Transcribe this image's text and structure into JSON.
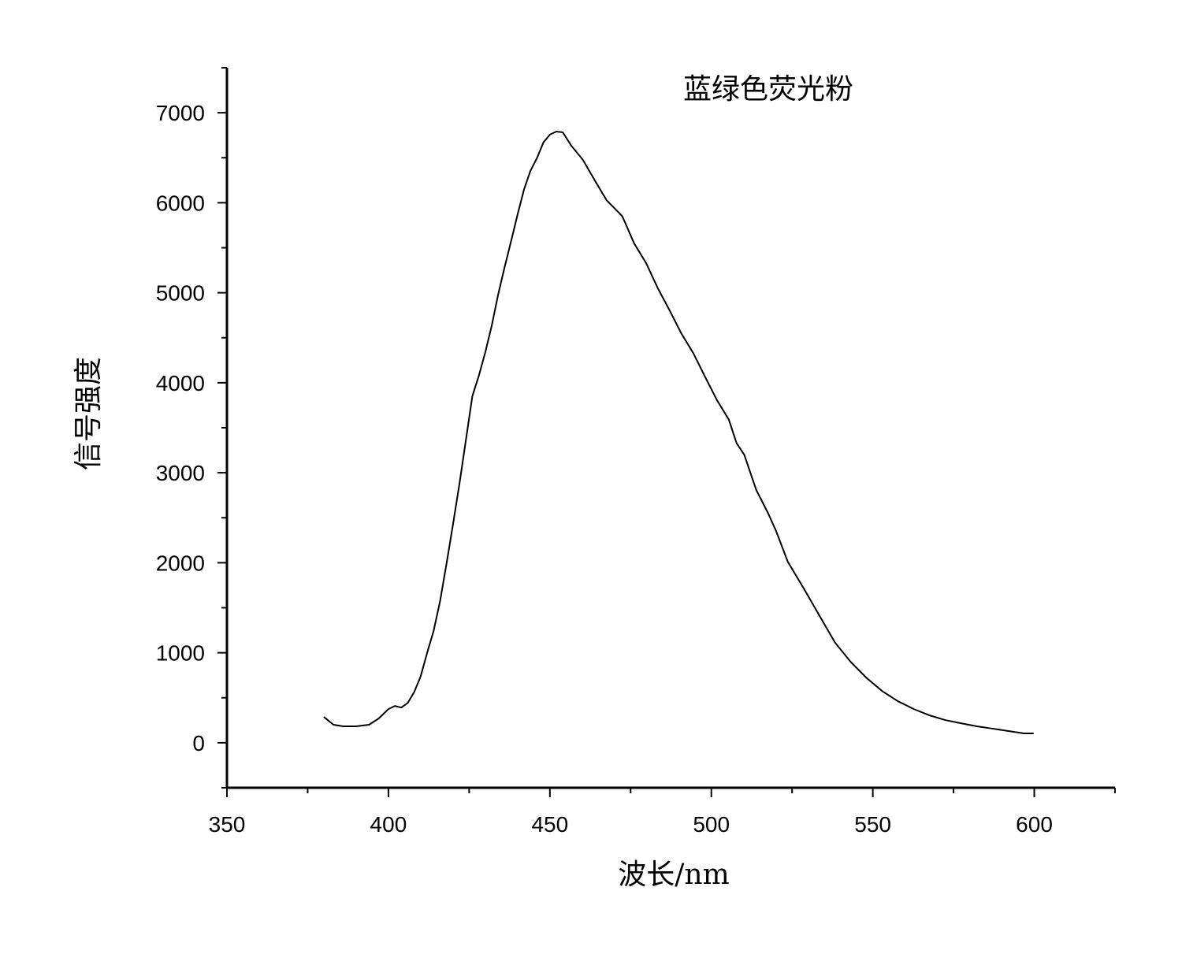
{
  "chart_data": {
    "type": "line",
    "title": "蓝绿色荧光粉",
    "x_label": "波长/nm",
    "y_label": "信号强度",
    "x": [
      380,
      383,
      386,
      390,
      394,
      397,
      400,
      402,
      404,
      406,
      408,
      410,
      412,
      414,
      416,
      418,
      420,
      422,
      424,
      426,
      428,
      430,
      432,
      434,
      436,
      438,
      440,
      442,
      444,
      446,
      448,
      450,
      452,
      454,
      456.6,
      460.2,
      464,
      467.6,
      472.4,
      476.1,
      479.8,
      483.4,
      487,
      490.7,
      494.4,
      498,
      501.7,
      505.4,
      507.8,
      510.2,
      513.9,
      517.6,
      520,
      523.7,
      528.5,
      533.4,
      538.3,
      543.2,
      548,
      552.9,
      557.8,
      562.7,
      567.6,
      572.4,
      577.3,
      582.2,
      587.1,
      592,
      596.8,
      599.8
    ],
    "series": [
      {
        "color": "#000000",
        "values": [
          287,
          200,
          183,
          183,
          200,
          270,
          374,
          409,
          391,
          443,
          565,
          739,
          1000,
          1243,
          1574,
          1991,
          2426,
          2878,
          3365,
          3852,
          4078,
          4339,
          4635,
          4983,
          5287,
          5574,
          5870,
          6148,
          6357,
          6496,
          6670,
          6757,
          6791,
          6783,
          6635,
          6478,
          6243,
          6026,
          5852,
          5548,
          5330,
          5052,
          4809,
          4548,
          4330,
          4070,
          3809,
          3591,
          3330,
          3200,
          2809,
          2548,
          2357,
          2009,
          1722,
          1417,
          1113,
          896,
          722,
          574,
          461,
          374,
          304,
          252,
          217,
          183,
          157,
          130,
          104,
          104
        ]
      }
    ],
    "xlim": [
      350,
      625
    ],
    "ylim": [
      -500,
      7500
    ],
    "xticks": [
      350,
      400,
      450,
      500,
      550,
      600
    ],
    "yticks": [
      0,
      1000,
      2000,
      3000,
      4000,
      5000,
      6000,
      7000
    ]
  }
}
